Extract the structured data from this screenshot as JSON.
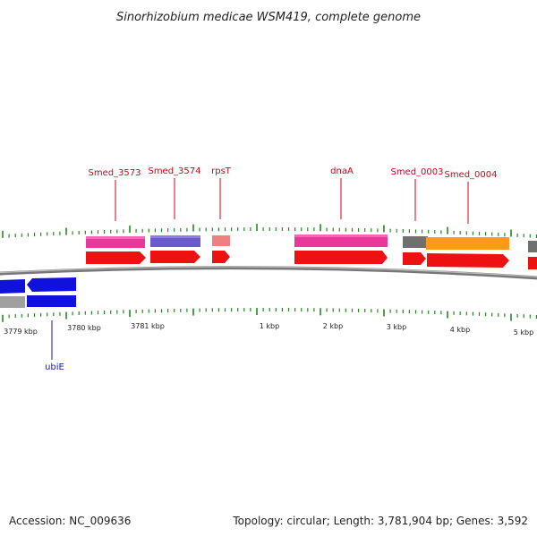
{
  "title": "Sinorhizobium medicae WSM419, complete genome",
  "footer": {
    "accession": "Accession: NC_009636",
    "topology": "Topology: circular; Length: 3,781,904 bp; Genes: 3,592"
  },
  "colors": {
    "forward_cds": "#ee1111",
    "reverse_cds": "#1111dd",
    "label_forward": "#d0001a",
    "label_reverse": "#1a1aa8",
    "ticks": "#228822",
    "backbone": "#888888"
  },
  "genes": [
    {
      "name": "Smed_3573",
      "strand": "forward",
      "category_color": "#e8389a"
    },
    {
      "name": "Smed_3574",
      "strand": "forward",
      "category_color": "#6a5acd"
    },
    {
      "name": "rpsT",
      "strand": "forward",
      "category_color": "#ee8080"
    },
    {
      "name": "dnaA",
      "strand": "forward",
      "category_color": "#e8389a"
    },
    {
      "name": "Smed_0003",
      "strand": "forward",
      "category_color": "#707070"
    },
    {
      "name": "Smed_0004",
      "strand": "forward",
      "category_color": "#ff9a1a"
    },
    {
      "name": "ubiE",
      "strand": "reverse",
      "category_color": "#a0a0a0"
    }
  ],
  "axis": {
    "tick_labels": [
      "3779 kbp",
      "3780 kbp",
      "3781 kbp",
      "1 kbp",
      "2 kbp",
      "3 kbp",
      "4 kbp",
      "5 kbp"
    ]
  }
}
